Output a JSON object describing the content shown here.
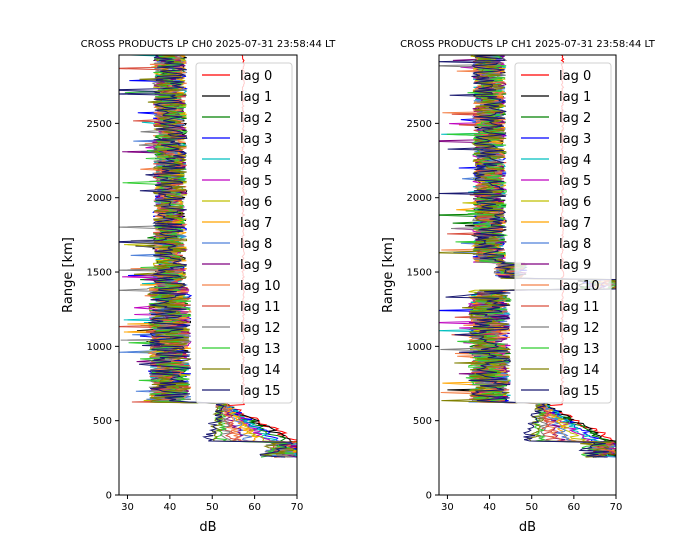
{
  "chart_data": [
    {
      "type": "line",
      "title": "CROSS PRODUCTS LP CH0 2025-07-31 23:58:44 LT",
      "xlabel": "dB",
      "ylabel": "Range [km]",
      "xlim": [
        28,
        70
      ],
      "ylim": [
        0,
        2960
      ],
      "xticks": [
        30,
        40,
        50,
        60,
        70
      ],
      "yticks": [
        0,
        500,
        1000,
        1500,
        2000,
        2500
      ],
      "grid": false,
      "legend_position": "upper-right",
      "series": [
        {
          "name": "lag 0",
          "color": "#ff0000"
        },
        {
          "name": "lag 1",
          "color": "#000000"
        },
        {
          "name": "lag 2",
          "color": "#008000"
        },
        {
          "name": "lag 3",
          "color": "#0000ff"
        },
        {
          "name": "lag 4",
          "color": "#00bfbf"
        },
        {
          "name": "lag 5",
          "color": "#bf00bf"
        },
        {
          "name": "lag 6",
          "color": "#bfbf00"
        },
        {
          "name": "lag 7",
          "color": "#ffa500"
        },
        {
          "name": "lag 8",
          "color": "#4f81d9"
        },
        {
          "name": "lag 9",
          "color": "#800080"
        },
        {
          "name": "lag 10",
          "color": "#f4824a"
        },
        {
          "name": "lag 11",
          "color": "#d94f3f"
        },
        {
          "name": "lag 12",
          "color": "#808080"
        },
        {
          "name": "lag 13",
          "color": "#32cd32"
        },
        {
          "name": "lag 14",
          "color": "#808000"
        },
        {
          "name": "lag 15",
          "color": "#191970"
        }
      ]
    },
    {
      "type": "line",
      "title": "CROSS PRODUCTS LP CH1 2025-07-31 23:58:44 LT",
      "xlabel": "dB",
      "ylabel": "Range [km]",
      "xlim": [
        28,
        70
      ],
      "ylim": [
        0,
        2960
      ],
      "xticks": [
        30,
        40,
        50,
        60,
        70
      ],
      "yticks": [
        0,
        500,
        1000,
        1500,
        2000,
        2500
      ],
      "grid": false,
      "legend_position": "upper-right",
      "series": [
        {
          "name": "lag 0",
          "color": "#ff0000"
        },
        {
          "name": "lag 1",
          "color": "#000000"
        },
        {
          "name": "lag 2",
          "color": "#008000"
        },
        {
          "name": "lag 3",
          "color": "#0000ff"
        },
        {
          "name": "lag 4",
          "color": "#00bfbf"
        },
        {
          "name": "lag 5",
          "color": "#bf00bf"
        },
        {
          "name": "lag 6",
          "color": "#bfbf00"
        },
        {
          "name": "lag 7",
          "color": "#ffa500"
        },
        {
          "name": "lag 8",
          "color": "#4f81d9"
        },
        {
          "name": "lag 9",
          "color": "#800080"
        },
        {
          "name": "lag 10",
          "color": "#f4824a"
        },
        {
          "name": "lag 11",
          "color": "#d94f3f"
        },
        {
          "name": "lag 12",
          "color": "#808080"
        },
        {
          "name": "lag 13",
          "color": "#32cd32"
        },
        {
          "name": "lag 14",
          "color": "#808000"
        },
        {
          "name": "lag 15",
          "color": "#191970"
        }
      ]
    }
  ]
}
